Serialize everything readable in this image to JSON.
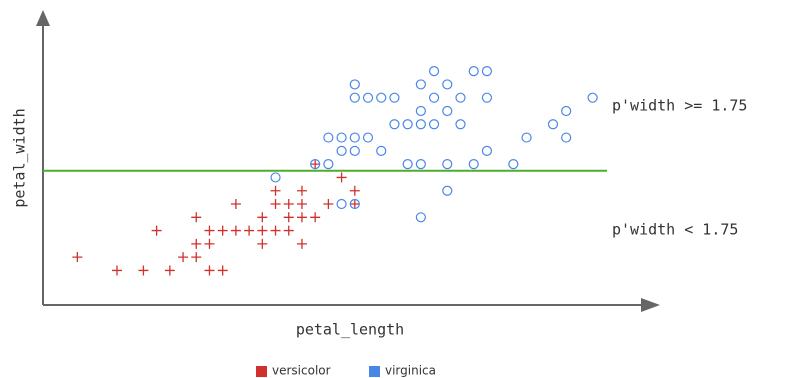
{
  "chart_data": {
    "type": "scatter",
    "x_label": "petal_length",
    "y_label": "petal_width",
    "xlim": [
      2.74,
      7.41
    ],
    "ylim": [
      0.74,
      2.96
    ],
    "threshold": 1.75,
    "threshold_color": "#4caf2c",
    "annotations": [
      "p'width >= 1.75",
      "p'width < 1.75"
    ],
    "legend": "bottom",
    "series": [
      {
        "name": "versicolor",
        "color": "#d0312d",
        "marker": "plus",
        "x": [
          3.3,
          3.5,
          3.7,
          4.0,
          4.1,
          3.0,
          3.8,
          3.9,
          3.9,
          4.0,
          4.4,
          4.7,
          3.6,
          4.0,
          4.1,
          4.2,
          4.3,
          4.4,
          4.5,
          4.6,
          3.9,
          4.4,
          4.6,
          4.7,
          4.8,
          4.2,
          4.5,
          4.6,
          4.7,
          4.9,
          5.1,
          4.5,
          4.7,
          5.1,
          5.0,
          4.8
        ],
        "values": [
          1.0,
          1.0,
          1.0,
          1.0,
          1.0,
          1.1,
          1.1,
          1.1,
          1.2,
          1.2,
          1.2,
          1.2,
          1.3,
          1.3,
          1.3,
          1.3,
          1.3,
          1.3,
          1.3,
          1.3,
          1.4,
          1.4,
          1.4,
          1.4,
          1.4,
          1.5,
          1.5,
          1.5,
          1.5,
          1.5,
          1.5,
          1.6,
          1.6,
          1.6,
          1.7,
          1.8
        ]
      },
      {
        "name": "virginica",
        "color": "#4a86e8",
        "marker": "circle",
        "x": [
          5.6,
          5.0,
          5.1,
          5.8,
          4.5,
          4.8,
          4.9,
          5.5,
          5.6,
          5.8,
          6.0,
          6.3,
          5.0,
          5.1,
          5.3,
          6.1,
          4.9,
          5.0,
          5.1,
          5.2,
          6.4,
          6.7,
          5.4,
          5.5,
          5.6,
          5.7,
          5.9,
          6.6,
          5.6,
          5.8,
          6.7,
          5.1,
          5.2,
          5.3,
          5.4,
          5.7,
          5.9,
          6.1,
          6.9,
          5.1,
          5.6,
          5.8,
          5.7,
          6.0,
          6.1
        ],
        "values": [
          1.4,
          1.5,
          1.5,
          1.6,
          1.7,
          1.8,
          1.8,
          1.8,
          1.8,
          1.8,
          1.8,
          1.8,
          1.9,
          1.9,
          1.9,
          1.9,
          2.0,
          2.0,
          2.0,
          2.0,
          2.0,
          2.0,
          2.1,
          2.1,
          2.1,
          2.1,
          2.1,
          2.1,
          2.2,
          2.2,
          2.2,
          2.3,
          2.3,
          2.3,
          2.3,
          2.3,
          2.3,
          2.3,
          2.3,
          2.4,
          2.4,
          2.4,
          2.5,
          2.5,
          2.5
        ]
      }
    ]
  }
}
